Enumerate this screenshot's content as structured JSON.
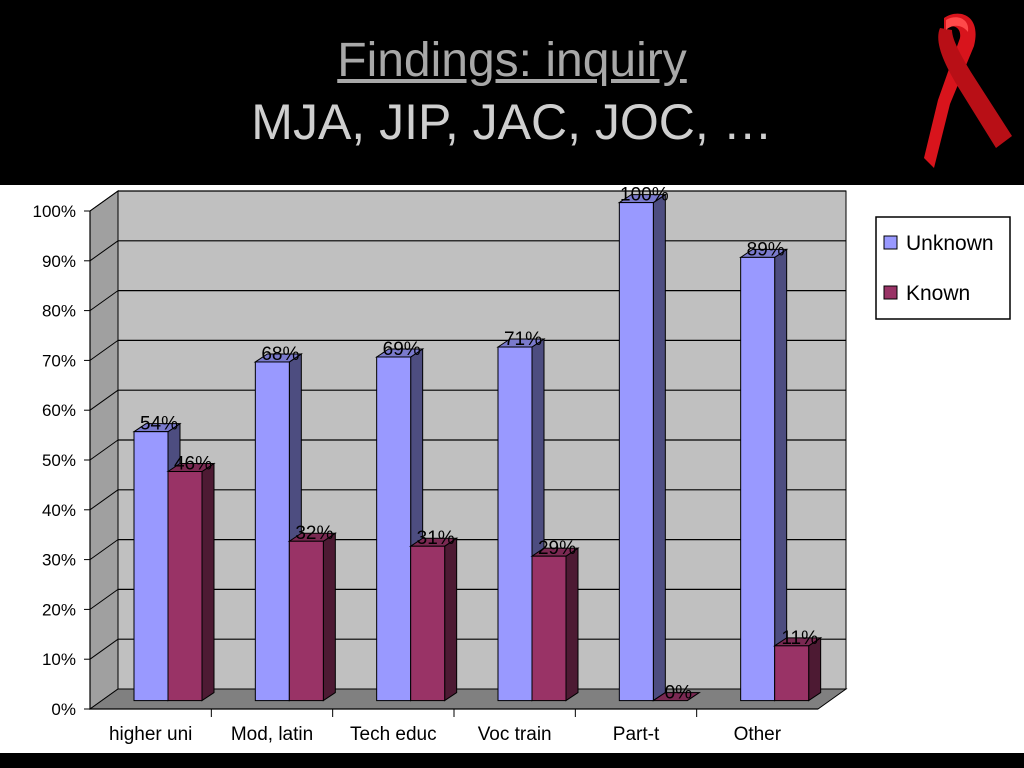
{
  "title": {
    "line1": "Findings: inquiry",
    "line2": "MJA, JIP, JAC, JOC, …"
  },
  "ribbon_icon": "red-awareness-ribbon-icon",
  "colors": {
    "unknown": "#9999ff",
    "known": "#993366",
    "plot_bg": "#c0c0c0",
    "floor": "#808080"
  },
  "chart_data": {
    "type": "bar",
    "categories": [
      "higher uni",
      "Mod, latin",
      "Tech educ",
      "Voc train",
      "Part-t",
      "Other"
    ],
    "series": [
      {
        "name": "Unknown",
        "values": [
          54,
          68,
          69,
          71,
          100,
          89
        ],
        "labels": [
          "54%",
          "68%",
          "69%",
          "71%",
          "100%",
          "89%"
        ]
      },
      {
        "name": "Known",
        "values": [
          46,
          32,
          31,
          29,
          0,
          11
        ],
        "labels": [
          "46%",
          "32%",
          "31%",
          "29%",
          "0%",
          "11%"
        ]
      }
    ],
    "yticks": [
      "0%",
      "10%",
      "20%",
      "30%",
      "40%",
      "50%",
      "60%",
      "70%",
      "80%",
      "90%",
      "100%"
    ],
    "ylim": [
      0,
      100
    ],
    "grid": true,
    "legend": "right",
    "three_d": true
  }
}
